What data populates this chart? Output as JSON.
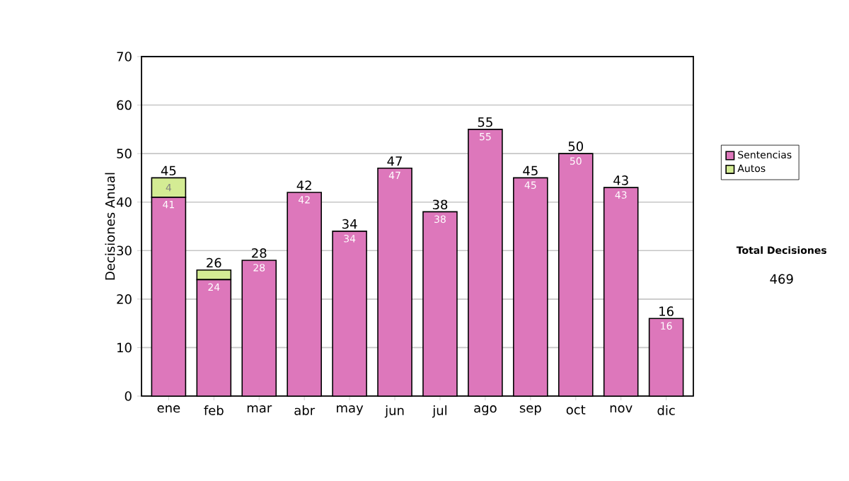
{
  "chart_data": {
    "type": "bar",
    "stacked": true,
    "ylabel": "Decisiones Anual",
    "categories": [
      "ene",
      "feb",
      "mar",
      "abr",
      "may",
      "jun",
      "jul",
      "ago",
      "sep",
      "oct",
      "nov",
      "dic"
    ],
    "series": [
      {
        "name": "Sentencias",
        "color": "#dd77bb",
        "values": [
          41,
          24,
          28,
          42,
          34,
          47,
          38,
          55,
          45,
          50,
          43,
          16
        ],
        "value_labels": [
          "41",
          "24",
          "28",
          "42",
          "34",
          "47",
          "38",
          "55",
          "45",
          "50",
          "43",
          "16"
        ]
      },
      {
        "name": "Autos",
        "color": "#d4ec94",
        "values": [
          4,
          2,
          0,
          0,
          0,
          0,
          0,
          0,
          0,
          0,
          0,
          0
        ],
        "value_labels": [
          "4",
          null,
          null,
          null,
          null,
          null,
          null,
          null,
          null,
          null,
          null,
          null
        ]
      }
    ],
    "totals": [
      "45",
      "26",
      "28",
      "42",
      "34",
      "47",
      "38",
      "55",
      "45",
      "50",
      "43",
      "16"
    ],
    "ylim": [
      0,
      70
    ],
    "yticks": [
      0,
      10,
      20,
      30,
      40,
      50,
      60,
      70
    ],
    "grid": "y",
    "legend": "right",
    "annotations": [
      "Total Decisiones",
      "469"
    ]
  }
}
